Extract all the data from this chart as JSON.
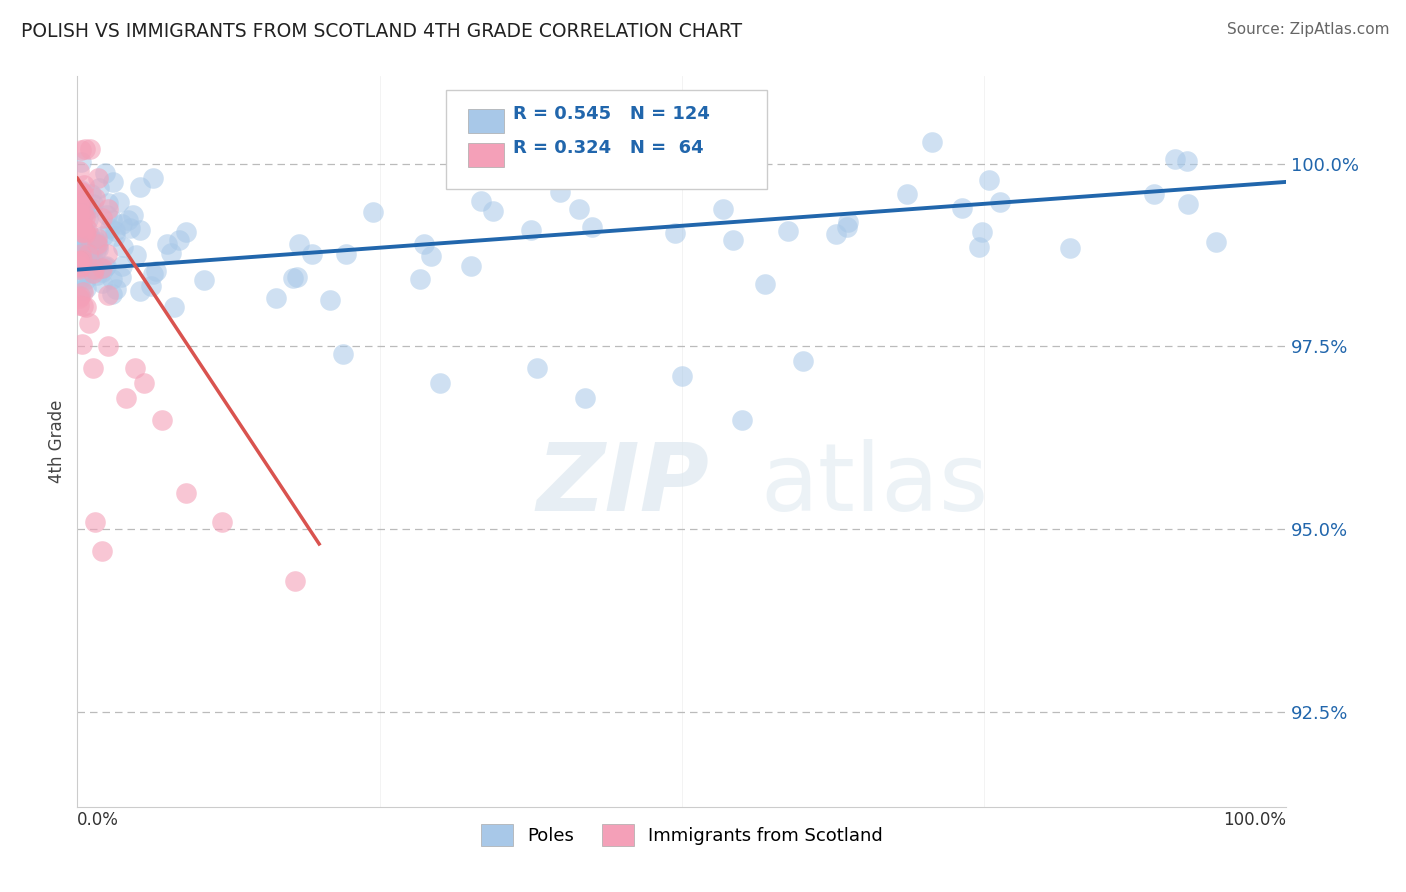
{
  "title": "POLISH VS IMMIGRANTS FROM SCOTLAND 4TH GRADE CORRELATION CHART",
  "source_text": "Source: ZipAtlas.com",
  "ylabel": "4th Grade",
  "yticks": [
    92.5,
    95.0,
    97.5,
    100.0
  ],
  "ytick_labels": [
    "92.5%",
    "95.0%",
    "97.5%",
    "100.0%"
  ],
  "xmin": 0.0,
  "xmax": 100.0,
  "ymin": 91.2,
  "ymax": 101.2,
  "blue_R": 0.545,
  "blue_N": 124,
  "pink_R": 0.324,
  "pink_N": 64,
  "blue_color": "#a8c8e8",
  "pink_color": "#f4a0b8",
  "blue_line_color": "#2166ac",
  "pink_line_color": "#d9534f",
  "legend_label_blue": "Poles",
  "legend_label_pink": "Immigrants from Scotland"
}
